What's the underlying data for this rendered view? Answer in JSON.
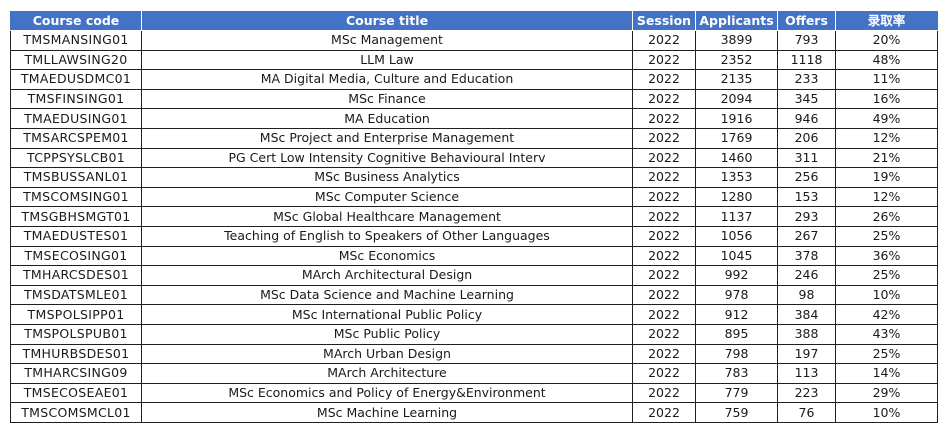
{
  "headers": {
    "code": "Course code",
    "title": "Course title",
    "session": "Session",
    "applicants": "Applicants",
    "offers": "Offers",
    "rate": "录取率"
  },
  "rows": [
    {
      "code": "TMSMANSING01",
      "title": "MSc Management",
      "session": "2022",
      "applicants": "3899",
      "offers": "793",
      "rate": "20%"
    },
    {
      "code": "TMLLAWSING20",
      "title": "LLM Law",
      "session": "2022",
      "applicants": "2352",
      "offers": "1118",
      "rate": "48%"
    },
    {
      "code": "TMAEDUSDMC01",
      "title": "MA Digital Media, Culture and Education",
      "session": "2022",
      "applicants": "2135",
      "offers": "233",
      "rate": "11%"
    },
    {
      "code": "TMSFINSING01",
      "title": "MSc Finance",
      "session": "2022",
      "applicants": "2094",
      "offers": "345",
      "rate": "16%"
    },
    {
      "code": "TMAEDUSING01",
      "title": "MA Education",
      "session": "2022",
      "applicants": "1916",
      "offers": "946",
      "rate": "49%"
    },
    {
      "code": "TMSARCSPEM01",
      "title": "MSc Project and Enterprise Management",
      "session": "2022",
      "applicants": "1769",
      "offers": "206",
      "rate": "12%"
    },
    {
      "code": "TCPPSYSLCB01",
      "title": "PG Cert Low Intensity Cognitive Behavioural Interv",
      "session": "2022",
      "applicants": "1460",
      "offers": "311",
      "rate": "21%"
    },
    {
      "code": "TMSBUSSANL01",
      "title": "MSc Business Analytics",
      "session": "2022",
      "applicants": "1353",
      "offers": "256",
      "rate": "19%"
    },
    {
      "code": "TMSCOMSING01",
      "title": "MSc Computer Science",
      "session": "2022",
      "applicants": "1280",
      "offers": "153",
      "rate": "12%"
    },
    {
      "code": "TMSGBHSMGT01",
      "title": "MSc Global Healthcare Management",
      "session": "2022",
      "applicants": "1137",
      "offers": "293",
      "rate": "26%"
    },
    {
      "code": "TMAEDUSTES01",
      "title": "Teaching of English to Speakers of Other Languages",
      "session": "2022",
      "applicants": "1056",
      "offers": "267",
      "rate": "25%"
    },
    {
      "code": "TMSECOSING01",
      "title": "MSc Economics",
      "session": "2022",
      "applicants": "1045",
      "offers": "378",
      "rate": "36%"
    },
    {
      "code": "TMHARCSDES01",
      "title": "MArch Architectural Design",
      "session": "2022",
      "applicants": "992",
      "offers": "246",
      "rate": "25%"
    },
    {
      "code": "TMSDATSMLE01",
      "title": "MSc Data Science and Machine Learning",
      "session": "2022",
      "applicants": "978",
      "offers": "98",
      "rate": "10%"
    },
    {
      "code": "TMSPOLSIPP01",
      "title": "MSc International Public Policy",
      "session": "2022",
      "applicants": "912",
      "offers": "384",
      "rate": "42%"
    },
    {
      "code": "TMSPOLSPUB01",
      "title": "MSc Public Policy",
      "session": "2022",
      "applicants": "895",
      "offers": "388",
      "rate": "43%"
    },
    {
      "code": "TMHURBSDES01",
      "title": "MArch Urban Design",
      "session": "2022",
      "applicants": "798",
      "offers": "197",
      "rate": "25%"
    },
    {
      "code": "TMHARCSING09",
      "title": "MArch Architecture",
      "session": "2022",
      "applicants": "783",
      "offers": "113",
      "rate": "14%"
    },
    {
      "code": "TMSECOSEAE01",
      "title": "MSc Economics and Policy of Energy&Environment",
      "session": "2022",
      "applicants": "779",
      "offers": "223",
      "rate": "29%"
    },
    {
      "code": "TMSCOMSMCL01",
      "title": "MSc Machine Learning",
      "session": "2022",
      "applicants": "759",
      "offers": "76",
      "rate": "10%"
    }
  ],
  "colors": {
    "header_bg": "#4472c4",
    "header_text": "#ffffff",
    "grid": "#1f1f1f"
  }
}
